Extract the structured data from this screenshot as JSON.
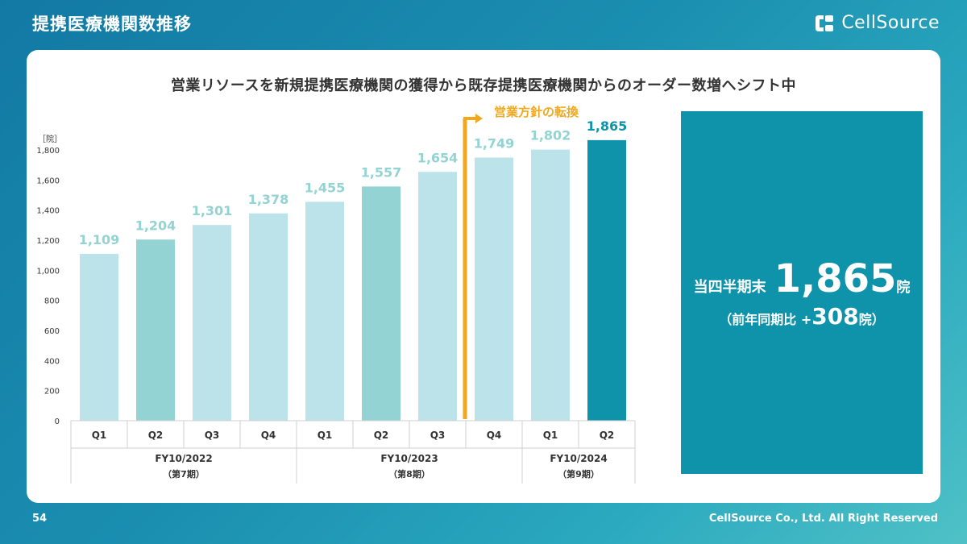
{
  "header": {
    "title": "提携医療機関数推移",
    "logo_text": "CellSource"
  },
  "headline": "営業リソースを新規提携医療機関の獲得から既存提携医療機関からのオーダー数増へシフト中",
  "chart_data": {
    "type": "bar",
    "ylabel": "［院］",
    "ylim": [
      0,
      1800
    ],
    "yticks": [
      "1,800",
      "1,600",
      "1,400",
      "1,200",
      "1,000",
      "800",
      "600",
      "400",
      "200",
      "0"
    ],
    "categories": [
      "Q1",
      "Q2",
      "Q3",
      "Q4",
      "Q1",
      "Q2",
      "Q3",
      "Q4",
      "Q1",
      "Q2"
    ],
    "values": [
      1109,
      1204,
      1301,
      1378,
      1455,
      1557,
      1654,
      1749,
      1802,
      1865
    ],
    "value_labels": [
      "1,109",
      "1,204",
      "1,301",
      "1,378",
      "1,455",
      "1,557",
      "1,654",
      "1,749",
      "1,802",
      "1,865"
    ],
    "colors": {
      "bar": "#bde3ea",
      "bar_q2": "#94d3d3",
      "bar_latest": "#0e93ab",
      "label": "#94d3d3",
      "label_latest": "#0e93ab",
      "annotation": "#f2a81e"
    },
    "groups": [
      {
        "name": "FY10/2022",
        "period": "（第7期）"
      },
      {
        "name": "FY10/2023",
        "period": "（第8期）"
      },
      {
        "name": "FY10/2024",
        "period": "（第9期）"
      }
    ],
    "annotation": "営業方針の転換"
  },
  "kpi": {
    "label": "当四半期末",
    "value": "1,865",
    "unit": "院",
    "yoy_prefix": "（前年同期比 +",
    "yoy_value": "308",
    "yoy_suffix": "院）"
  },
  "footer": {
    "page": "54",
    "copyright": "CellSource Co., Ltd. All Right Reserved"
  }
}
